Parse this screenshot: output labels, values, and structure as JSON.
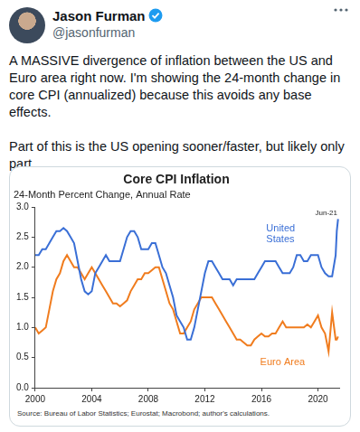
{
  "tweet": {
    "author": "Jason Furman",
    "handle": "@jasonfurman",
    "text": [
      "A MASSIVE divergence of inflation between the US and Euro area right now. I'm showing the 24-month change in core CPI (annualized) because this avoids any base effects.",
      "Part of this is the US opening sooner/faster, but likely only part."
    ]
  },
  "chart_data": {
    "type": "line",
    "title": "Core CPI Inflation",
    "subtitle": "24-Month Percent Change, Annual Rate",
    "annotations": [
      "Jun-21"
    ],
    "source": "Source: Bureau of Labor Statistics; Eurostat; Macrobond; author's calculations.",
    "x": [
      2000,
      2000.25,
      2000.5,
      2000.75,
      2001,
      2001.25,
      2001.5,
      2001.75,
      2002,
      2002.25,
      2002.5,
      2002.75,
      2003,
      2003.25,
      2003.5,
      2003.75,
      2004,
      2004.25,
      2004.5,
      2004.75,
      2005,
      2005.25,
      2005.5,
      2005.75,
      2006,
      2006.25,
      2006.5,
      2006.75,
      2007,
      2007.25,
      2007.5,
      2007.75,
      2008,
      2008.25,
      2008.5,
      2008.75,
      2009,
      2009.25,
      2009.5,
      2009.75,
      2010,
      2010.25,
      2010.5,
      2010.75,
      2011,
      2011.25,
      2011.5,
      2011.75,
      2012,
      2012.25,
      2012.5,
      2012.75,
      2013,
      2013.25,
      2013.5,
      2013.75,
      2014,
      2014.25,
      2014.5,
      2014.75,
      2015,
      2015.25,
      2015.5,
      2015.75,
      2016,
      2016.25,
      2016.5,
      2016.75,
      2017,
      2017.25,
      2017.5,
      2017.75,
      2018,
      2018.25,
      2018.5,
      2018.75,
      2019,
      2019.25,
      2019.5,
      2019.75,
      2020,
      2020.25,
      2020.5,
      2020.75,
      2021,
      2021.25,
      2021.33,
      2021.42
    ],
    "series": [
      {
        "name": "United States",
        "color": "#3a6fd6",
        "values": [
          2.2,
          2.2,
          2.3,
          2.3,
          2.4,
          2.5,
          2.6,
          2.6,
          2.65,
          2.6,
          2.5,
          2.4,
          2.1,
          1.8,
          1.6,
          1.55,
          1.6,
          1.9,
          2.0,
          2.1,
          2.2,
          2.1,
          2.1,
          2.1,
          2.1,
          2.3,
          2.5,
          2.6,
          2.6,
          2.5,
          2.3,
          2.3,
          2.3,
          2.4,
          2.4,
          2.2,
          2.0,
          1.9,
          1.7,
          1.5,
          1.2,
          1.1,
          1.0,
          0.8,
          0.8,
          1.0,
          1.3,
          1.6,
          1.9,
          2.1,
          2.1,
          2.0,
          1.9,
          1.8,
          1.8,
          1.8,
          1.7,
          1.8,
          1.8,
          1.8,
          1.8,
          1.8,
          1.8,
          1.9,
          2.0,
          2.1,
          2.1,
          2.1,
          2.1,
          2.0,
          1.9,
          1.9,
          1.9,
          2.0,
          2.2,
          2.2,
          2.1,
          2.1,
          2.2,
          2.2,
          2.2,
          2.0,
          1.9,
          1.85,
          1.85,
          2.2,
          2.6,
          2.8
        ]
      },
      {
        "name": "Euro Area",
        "color": "#f07c1e",
        "values": [
          1.0,
          0.9,
          0.95,
          1.0,
          1.3,
          1.6,
          1.8,
          1.9,
          2.1,
          2.2,
          2.1,
          2.0,
          2.0,
          1.9,
          1.8,
          1.9,
          2.0,
          1.9,
          1.8,
          1.7,
          1.6,
          1.5,
          1.4,
          1.4,
          1.35,
          1.4,
          1.45,
          1.6,
          1.7,
          1.8,
          1.8,
          1.9,
          1.9,
          1.95,
          2.0,
          2.0,
          1.8,
          1.6,
          1.4,
          1.3,
          1.1,
          0.9,
          0.9,
          1.0,
          1.1,
          1.3,
          1.4,
          1.5,
          1.5,
          1.5,
          1.5,
          1.4,
          1.3,
          1.2,
          1.1,
          1.0,
          0.9,
          0.8,
          0.8,
          0.75,
          0.7,
          0.7,
          0.8,
          0.85,
          0.9,
          0.85,
          0.85,
          0.9,
          0.9,
          1.0,
          1.1,
          1.0,
          1.0,
          1.0,
          1.0,
          1.0,
          1.0,
          1.05,
          1.0,
          1.1,
          1.2,
          1.0,
          0.9,
          0.6,
          1.25,
          0.8,
          0.8,
          0.85
        ]
      }
    ],
    "xlim": [
      2000,
      2021.5
    ],
    "xticks": [
      2000,
      2004,
      2008,
      2012,
      2016,
      2020
    ],
    "ylim": [
      0,
      3
    ],
    "yticks": [
      {
        "value": 0,
        "label": "0.0"
      },
      {
        "value": 0.5,
        "label": "0.5"
      },
      {
        "value": 1,
        "label": "1.0"
      },
      {
        "value": 1.5,
        "label": "1.5"
      },
      {
        "value": 2,
        "label": "2.0"
      },
      {
        "value": 2.5,
        "label": "2.5"
      },
      {
        "value": 3,
        "label": "3.0"
      }
    ],
    "grid": false
  }
}
